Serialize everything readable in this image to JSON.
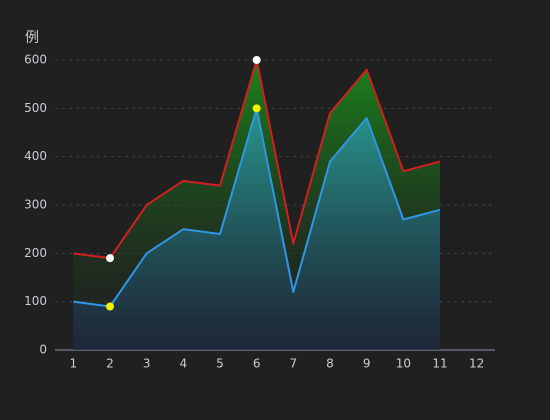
{
  "chart_data": {
    "type": "line",
    "y_axis_label": "例",
    "categories": [
      "1",
      "2",
      "3",
      "4",
      "5",
      "6",
      "7",
      "8",
      "9",
      "10",
      "11",
      "12"
    ],
    "series": [
      {
        "color": "#d11f1f",
        "marker_color": "#ffffff",
        "highlight_points": [
          1,
          5
        ],
        "values": [
          200,
          190,
          300,
          350,
          340,
          600,
          220,
          490,
          580,
          370,
          390,
          null
        ]
      },
      {
        "color": "#2f95e6",
        "marker_color": "#f2f200",
        "highlight_points": [
          1,
          5
        ],
        "values": [
          100,
          90,
          200,
          250,
          240,
          500,
          120,
          390,
          480,
          270,
          290,
          null
        ]
      }
    ],
    "ylim": [
      0,
      600
    ],
    "yticks": [
      0,
      100,
      200,
      300,
      400,
      500,
      600
    ],
    "grid": true,
    "area": true
  }
}
